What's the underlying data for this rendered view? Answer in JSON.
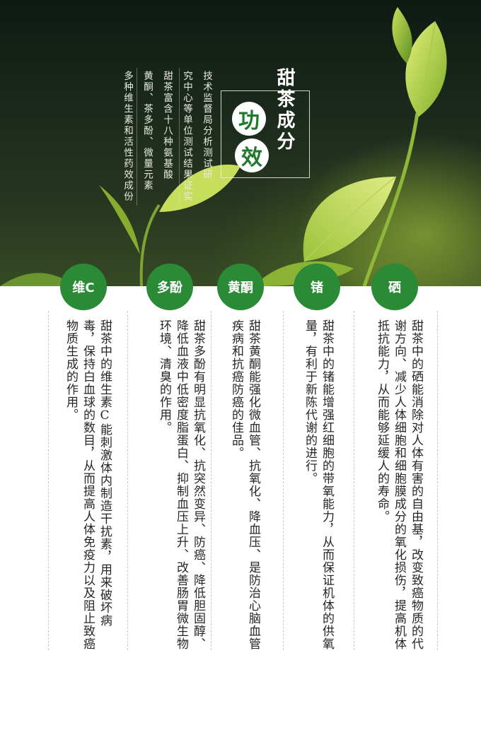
{
  "hero": {
    "title_main": "甜茶成分",
    "title_char_1": "功",
    "title_char_2": "效",
    "intro_lines": [
      "技术监督局分析测试研",
      "究中心等单位测试结果证实",
      "甜茶富含十八种氨基酸",
      "黄酮、茶多酚、微量元素",
      "多种维生素和活性药效成份"
    ]
  },
  "badges": [
    "维C",
    "多酚",
    "黄酮",
    "锗",
    "硒"
  ],
  "columns": [
    {
      "id": "vitc",
      "text": "甜茶中的维生素C能刺激体内制造干扰素，用来破坏病毒，保持白血球的数目，从而提高人体免疫力以及阻止致癌物质生成的作用。"
    },
    {
      "id": "polyphenol",
      "text": "甜茶多酚有明显抗氧化、抗突然变异、防癌、降低胆固醇、降低血液中低密度脂蛋白、抑制血压上升、改善肠胃微生物环境、清臭的作用。"
    },
    {
      "id": "flavone",
      "text": "甜茶黄酮能强化微血管、抗氧化、降血压、是防治心脑血管疾病和抗癌防癌的佳品。"
    },
    {
      "id": "germanium",
      "text": "甜茶中的锗能增强红细胞的带氧能力，从而保证机体的供氧量，有利于新陈代谢的进行。"
    },
    {
      "id": "selenium",
      "text": "甜茶中的硒能消除对人体有害的自由基，改变致癌物质的代谢方向、减少人体细胞和细胞膜成分的氧化损伤，提高机体抵抗能力，从而能够延缓人的寿命。"
    }
  ],
  "colors": {
    "accent_green": "#2b8a36"
  }
}
